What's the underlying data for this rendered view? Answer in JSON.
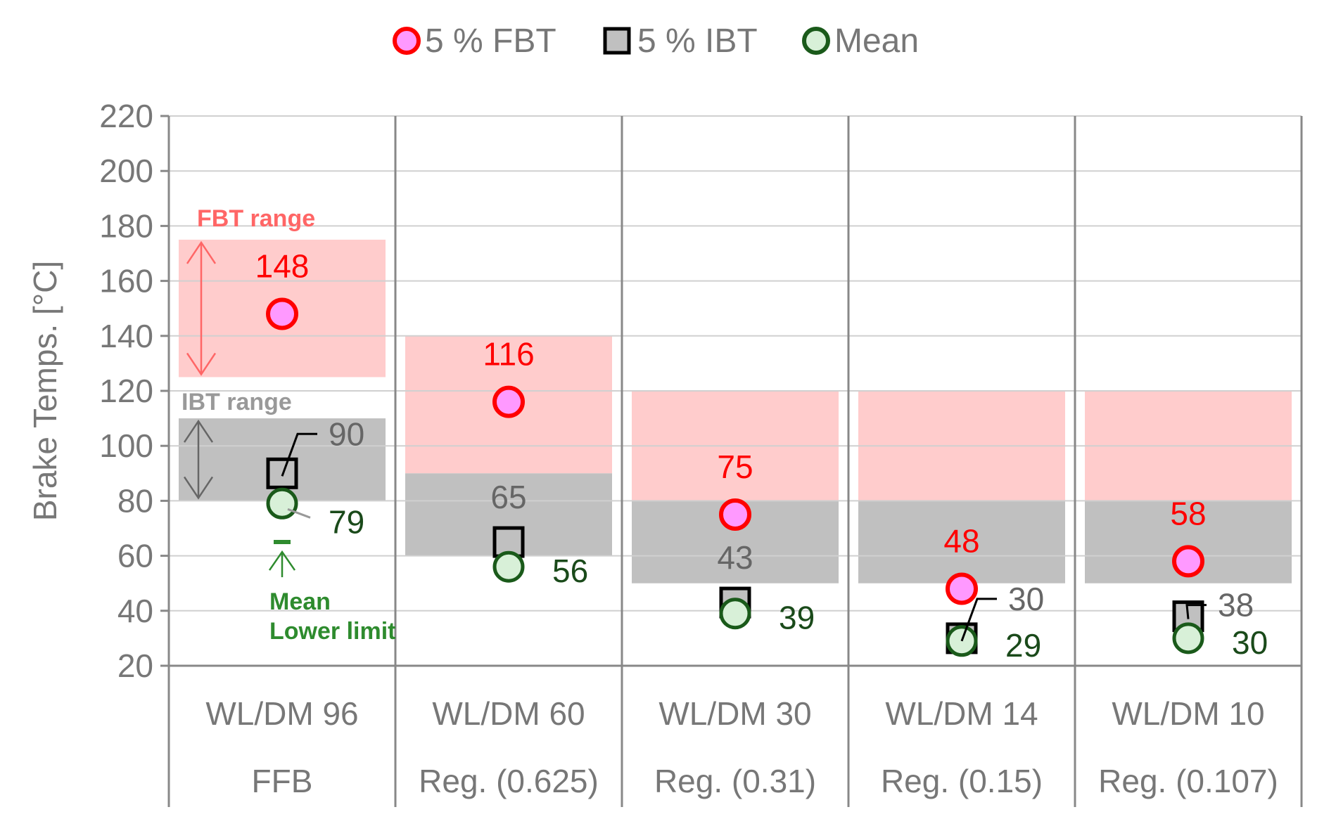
{
  "chart_data": {
    "type": "scatter",
    "title": "",
    "ylabel": "Brake Temps. [°C]",
    "xlabel": "",
    "ylim": [
      20,
      220
    ],
    "yticks": [
      20,
      40,
      60,
      80,
      100,
      120,
      140,
      160,
      180,
      200,
      220
    ],
    "grid": true,
    "legend_position": "top-center",
    "categories": [
      {
        "name": "WL/DM 96",
        "sub": "FFB"
      },
      {
        "name": "WL/DM 60",
        "sub": "Reg. (0.625)"
      },
      {
        "name": "WL/DM 30",
        "sub": "Reg. (0.31)"
      },
      {
        "name": "WL/DM 14",
        "sub": "Reg. (0.15)"
      },
      {
        "name": "WL/DM 10",
        "sub": "Reg. (0.107)"
      }
    ],
    "series": [
      {
        "name": "5 % FBT",
        "marker": "circle",
        "values": [
          148,
          116,
          75,
          48,
          58
        ],
        "labels": [
          "148",
          "116",
          "75",
          "48",
          "58"
        ]
      },
      {
        "name": "5 % IBT",
        "marker": "square",
        "values": [
          90,
          65,
          43,
          30,
          38
        ],
        "labels": [
          "90",
          "65",
          "43",
          "30",
          "38"
        ]
      },
      {
        "name": "Mean",
        "marker": "circle",
        "values": [
          79,
          56,
          39,
          29,
          30
        ],
        "labels": [
          "79",
          "56",
          "39",
          "29",
          "30"
        ]
      }
    ],
    "ranges": {
      "fbt": [
        [
          125,
          175
        ],
        [
          90,
          140
        ],
        [
          80,
          120
        ],
        [
          80,
          120
        ],
        [
          80,
          120
        ]
      ],
      "ibt": [
        [
          80,
          110
        ],
        [
          60,
          90
        ],
        [
          50,
          80
        ],
        [
          50,
          80
        ],
        [
          50,
          80
        ]
      ]
    },
    "mean_lower_limit": 65,
    "annotations": {
      "fbt_range": "FBT range",
      "ibt_range": "IBT range",
      "mean_lower_line1": "Mean",
      "mean_lower_line2": "Lower limit"
    },
    "colors": {
      "fbt_range": "#ffcccc",
      "ibt_range": "#c0c0c0",
      "fbt_marker_fill": "#ff99ff",
      "fbt_marker_stroke": "#ff0000",
      "ibt_marker_fill": "#c0c0c0",
      "ibt_marker_stroke": "#000000",
      "mean_marker_fill": "#d8f0d8",
      "mean_marker_stroke": "#1a5a1a",
      "fbt_label": "#ff0000",
      "ibt_label": "#666666",
      "mean_label": "#1a4a1a",
      "fbt_annotation": "#ff6666",
      "ibt_annotation": "#999999",
      "mean_annotation": "#2e8b2e",
      "axis_text": "#777777",
      "grid": "#d0d0d0",
      "frame": "#888888"
    }
  }
}
